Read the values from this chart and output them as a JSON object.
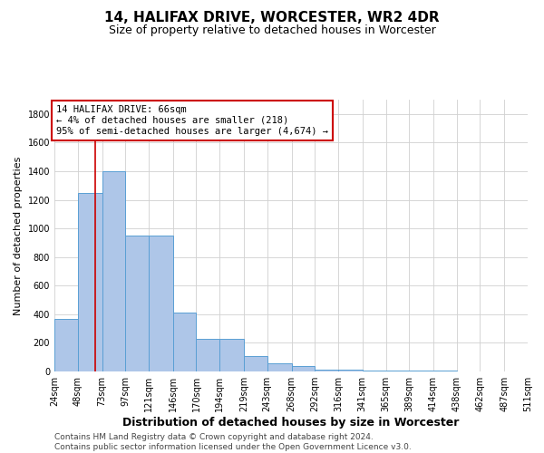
{
  "title": "14, HALIFAX DRIVE, WORCESTER, WR2 4DR",
  "subtitle": "Size of property relative to detached houses in Worcester",
  "xlabel": "Distribution of detached houses by size in Worcester",
  "ylabel": "Number of detached properties",
  "bins": [
    24,
    48,
    73,
    97,
    121,
    146,
    170,
    194,
    219,
    243,
    268,
    292,
    316,
    341,
    365,
    389,
    414,
    438,
    462,
    487,
    511
  ],
  "values": [
    370,
    1250,
    1400,
    950,
    950,
    410,
    230,
    230,
    110,
    60,
    35,
    15,
    10,
    5,
    5,
    5,
    5,
    3,
    3,
    3
  ],
  "bar_color": "#aec6e8",
  "bar_edge_color": "#5a9fd4",
  "property_size": 66,
  "property_line_color": "#cc0000",
  "annotation_line1": "14 HALIFAX DRIVE: 66sqm",
  "annotation_line2": "← 4% of detached houses are smaller (218)",
  "annotation_line3": "95% of semi-detached houses are larger (4,674) →",
  "annotation_box_color": "#ffffff",
  "annotation_box_edge_color": "#cc0000",
  "ylim": [
    0,
    1900
  ],
  "yticks": [
    0,
    200,
    400,
    600,
    800,
    1000,
    1200,
    1400,
    1600,
    1800
  ],
  "footer_line1": "Contains HM Land Registry data © Crown copyright and database right 2024.",
  "footer_line2": "Contains public sector information licensed under the Open Government Licence v3.0.",
  "background_color": "#ffffff",
  "grid_color": "#d0d0d0",
  "title_fontsize": 11,
  "subtitle_fontsize": 9,
  "ylabel_fontsize": 8,
  "xlabel_fontsize": 9,
  "tick_fontsize": 7,
  "annotation_fontsize": 7.5,
  "footer_fontsize": 6.5
}
